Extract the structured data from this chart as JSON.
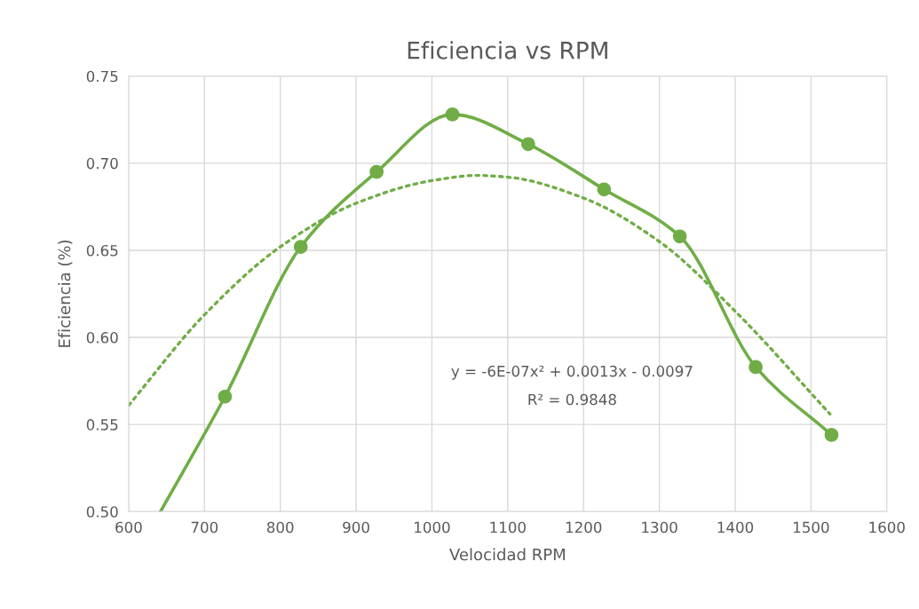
{
  "chart_data": {
    "type": "line",
    "title": "Eficiencia vs RPM",
    "xlabel": "Velocidad RPM",
    "ylabel": "Eficiencia (%)",
    "xlim": [
      600,
      1600
    ],
    "xticks": [
      600,
      700,
      800,
      900,
      1000,
      1100,
      1200,
      1300,
      1400,
      1500,
      1600
    ],
    "ylim": [
      0.5,
      0.75
    ],
    "yticks": [
      {
        "value": 0.5,
        "label": "0.50"
      },
      {
        "value": 0.55,
        "label": "0.55"
      },
      {
        "value": 0.6,
        "label": "0.60"
      },
      {
        "value": 0.65,
        "label": "0.65"
      },
      {
        "value": 0.7,
        "label": "0.70"
      },
      {
        "value": 0.75,
        "label": "0.75"
      }
    ],
    "grid": true,
    "series": [
      {
        "type": "line",
        "color": "#70ad47",
        "marker": "none",
        "line_style": "solid",
        "x": [
          642,
          727,
          827,
          927,
          1027,
          1127,
          1227,
          1327,
          1427,
          1527
        ],
        "values": [
          0.5,
          0.566,
          0.652,
          0.695,
          0.728,
          0.711,
          0.685,
          0.658,
          0.583,
          0.544
        ]
      },
      {
        "type": "scatter",
        "color": "#70ad47",
        "marker": "circle",
        "x": [
          727,
          827,
          927,
          1027,
          1127,
          1227,
          1327,
          1427,
          1527
        ],
        "values": [
          0.566,
          0.652,
          0.695,
          0.728,
          0.711,
          0.685,
          0.658,
          0.583,
          0.544
        ]
      },
      {
        "type": "line",
        "color": "#70ad47",
        "marker": "none",
        "line_style": "dotted",
        "x": [
          600,
          700,
          800,
          900,
          1000,
          1060,
          1100,
          1200,
          1300,
          1400,
          1525
        ],
        "values": [
          0.561,
          0.613,
          0.652,
          0.677,
          0.69,
          0.693,
          0.692,
          0.68,
          0.655,
          0.615,
          0.556
        ]
      }
    ],
    "annotations": [
      "y = -6E-07x² + 0.0013x - 0.0097",
      "R² = 0.9848"
    ]
  }
}
